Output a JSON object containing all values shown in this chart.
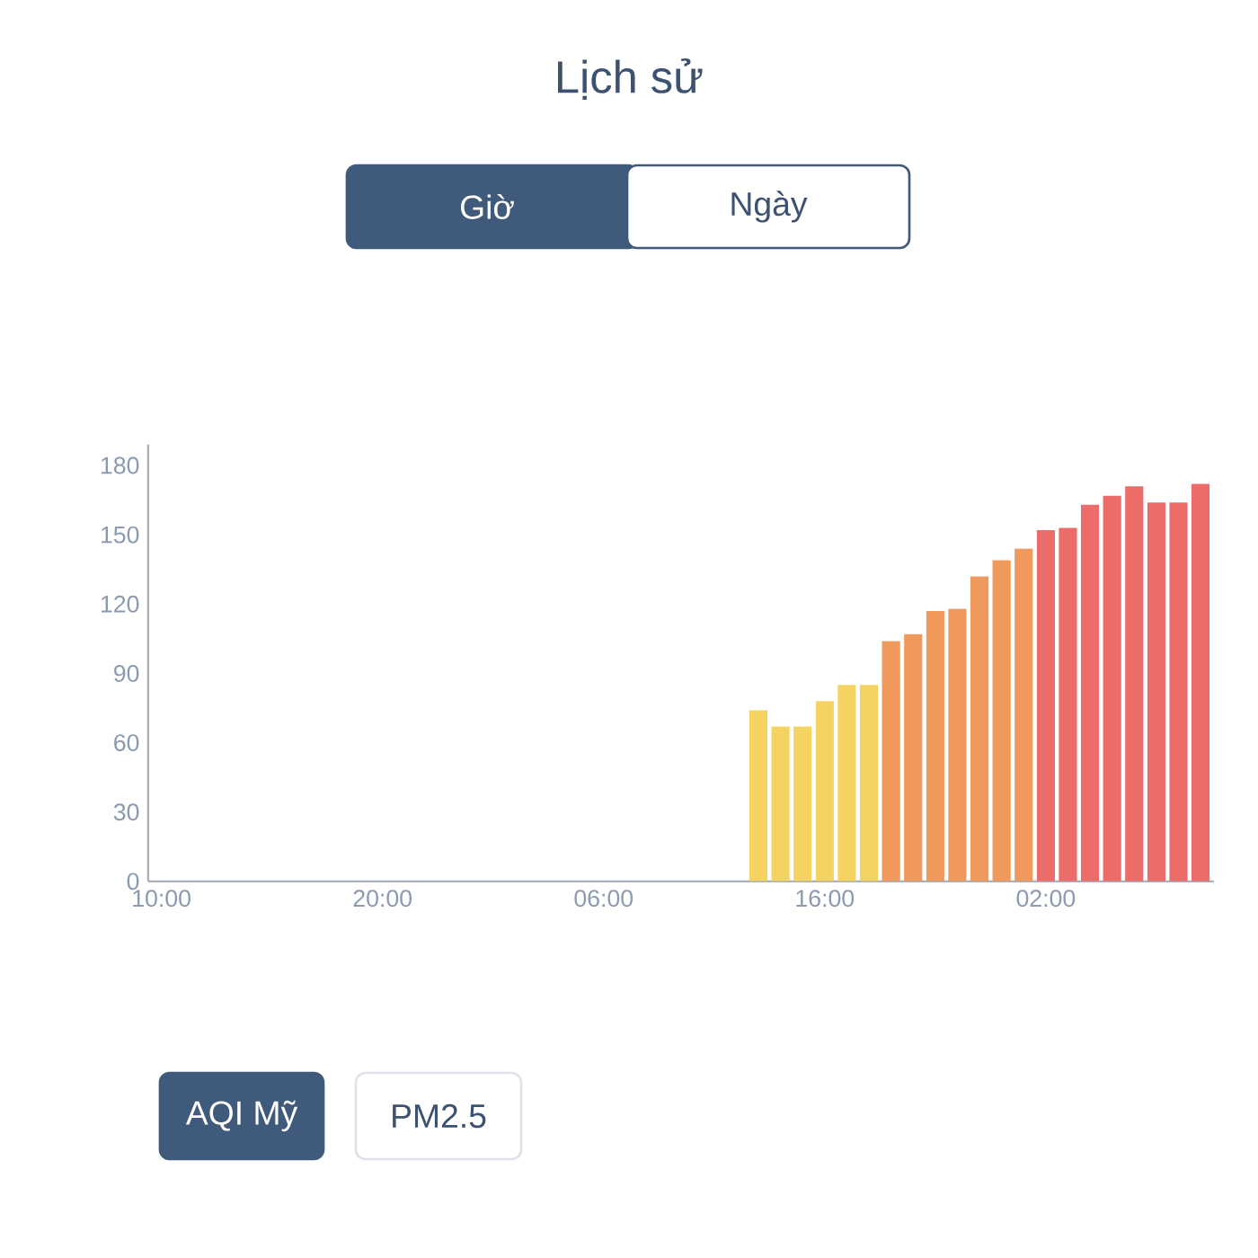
{
  "chart_data": {
    "type": "bar",
    "title": "Lịch sử",
    "annotations": [
      "Giờ",
      "Ngày",
      "AQI Mỹ",
      "PM2.5"
    ],
    "categories": [
      "10:00",
      null,
      null,
      null,
      null,
      null,
      null,
      null,
      null,
      null,
      "20:00",
      null,
      null,
      null,
      null,
      null,
      null,
      null,
      null,
      null,
      "06:00",
      null,
      null,
      null,
      null,
      null,
      null,
      null,
      null,
      null,
      "16:00",
      null,
      null,
      null,
      null,
      null,
      null,
      null,
      null,
      null,
      "02:00",
      null,
      null,
      null,
      null,
      null,
      null,
      null
    ],
    "values": [
      null,
      null,
      null,
      null,
      null,
      null,
      null,
      null,
      null,
      null,
      null,
      null,
      null,
      null,
      null,
      null,
      null,
      null,
      null,
      null,
      null,
      null,
      null,
      null,
      null,
      null,
      null,
      74,
      67,
      67,
      78,
      85,
      85,
      104,
      107,
      117,
      118,
      132,
      139,
      144,
      152,
      153,
      163,
      167,
      171,
      164,
      164,
      172
    ],
    "colors": [
      null,
      null,
      null,
      null,
      null,
      null,
      null,
      null,
      null,
      null,
      null,
      null,
      null,
      null,
      null,
      null,
      null,
      null,
      null,
      null,
      null,
      null,
      null,
      null,
      null,
      null,
      null,
      "#f5d362",
      "#f5d362",
      "#f5d362",
      "#f5d362",
      "#f5d362",
      "#f5d362",
      "#ef9a5c",
      "#ef9a5c",
      "#ef9a5c",
      "#ef9a5c",
      "#ef9a5c",
      "#ef9a5c",
      "#ef9a5c",
      "#ec6c6a",
      "#ec6c6a",
      "#ec6c6a",
      "#ec6c6a",
      "#ec6c6a",
      "#ec6c6a",
      "#ec6c6a",
      "#ec6c6a"
    ],
    "ylim": [
      0,
      189
    ],
    "yticks": [
      0,
      30,
      60,
      90,
      120,
      150,
      180
    ]
  }
}
